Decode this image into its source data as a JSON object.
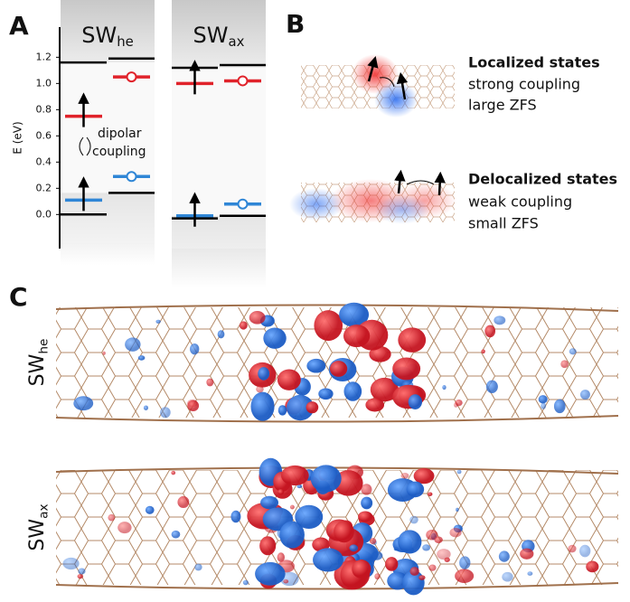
{
  "chart_data": {
    "type": "levels",
    "panel_label": "A",
    "ylabel": "E (eV)",
    "ylim": [
      -0.26,
      1.43
    ],
    "yticks": [
      {
        "value": 0,
        "label": "0.0"
      },
      {
        "value": 0.2,
        "label": "0.2"
      },
      {
        "value": 0.4,
        "label": "0.4"
      },
      {
        "value": 0.6,
        "label": "0.6"
      },
      {
        "value": 0.8,
        "label": "0.8"
      },
      {
        "value": 1.0,
        "label": "1.0"
      },
      {
        "value": 1.2,
        "label": "1.2"
      }
    ],
    "annotation": [
      "dipolar",
      "coupling"
    ],
    "groups": [
      {
        "name": "SW",
        "sub": "he",
        "columns": [
          [
            {
              "color": "#000000",
              "value": 1.16
            },
            {
              "color": "#e0232b",
              "value": 0.75
            },
            {
              "color": "#2f86d6",
              "value": 0.11
            },
            {
              "color": "#000000",
              "value": 0.0
            }
          ],
          [
            {
              "color": "#000000",
              "value": 1.19
            },
            {
              "color": "#e0232b",
              "value": 1.05
            },
            {
              "color": "#2f86d6",
              "value": 0.29
            },
            {
              "color": "#000000",
              "value": 0.165
            }
          ]
        ]
      },
      {
        "name": "SW",
        "sub": "ax",
        "columns": [
          [
            {
              "color": "#000000",
              "value": 1.12
            },
            {
              "color": "#e0232b",
              "value": 1.0
            },
            {
              "color": "#2f86d6",
              "value": -0.01
            },
            {
              "color": "#000000",
              "value": -0.03
            }
          ],
          [
            {
              "color": "#000000",
              "value": 1.14
            },
            {
              "color": "#e0232b",
              "value": 1.02
            },
            {
              "color": "#2f86d6",
              "value": 0.08
            },
            {
              "color": "#000000",
              "value": -0.01
            }
          ]
        ]
      }
    ]
  },
  "panel_b": {
    "label": "B",
    "localized": [
      "Localized states",
      "strong coupling",
      "large ZFS"
    ],
    "delocalized": [
      "Delocalized states",
      "weak coupling",
      "small ZFS"
    ]
  },
  "panel_c": {
    "label": "C",
    "rows": [
      {
        "name": "SW",
        "sub": "he"
      },
      {
        "name": "SW",
        "sub": "ax"
      }
    ]
  }
}
